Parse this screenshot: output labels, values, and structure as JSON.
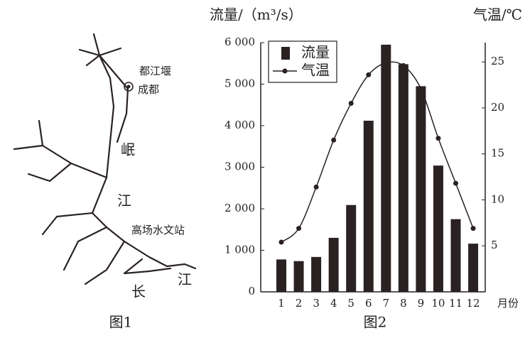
{
  "map": {
    "labels": [
      "都江堰",
      "成都",
      "岷",
      "江",
      "高场水文站",
      "长",
      "江"
    ],
    "caption": "图1"
  },
  "chart_data": {
    "type": "bar-line",
    "caption": "图2",
    "y_label": "流量/（m³/s）",
    "y2_label": "气温/℃",
    "x_label": "月份",
    "categories": [
      "1",
      "2",
      "3",
      "4",
      "5",
      "6",
      "7",
      "8",
      "9",
      "10",
      "11",
      "12"
    ],
    "series": [
      {
        "name": "流量",
        "type": "bar",
        "color": "#2a2222",
        "values": [
          780,
          740,
          840,
          1300,
          2090,
          4120,
          5950,
          5480,
          4950,
          3040,
          1750,
          1160
        ]
      },
      {
        "name": "气温",
        "type": "line",
        "axis": "y2",
        "color": "#2a2222",
        "values": [
          5.4,
          6.9,
          11.4,
          16.5,
          20.5,
          23.6,
          24.9,
          24.6,
          22.1,
          16.7,
          11.8,
          6.9
        ]
      }
    ],
    "ylim": [
      0,
      6000
    ],
    "yticks": [
      0,
      {
        "value": 1000,
        "label": "1 000"
      },
      {
        "value": 2000,
        "label": "2 000"
      },
      {
        "value": 3000,
        "label": "3 000"
      },
      {
        "value": 4000,
        "label": "4 000"
      },
      {
        "value": 5000,
        "label": "5 000"
      },
      {
        "value": 6000,
        "label": "6 000"
      }
    ],
    "y2lim": [
      0,
      27.1
    ],
    "y2ticks": [
      5,
      10,
      15,
      20,
      25
    ]
  }
}
